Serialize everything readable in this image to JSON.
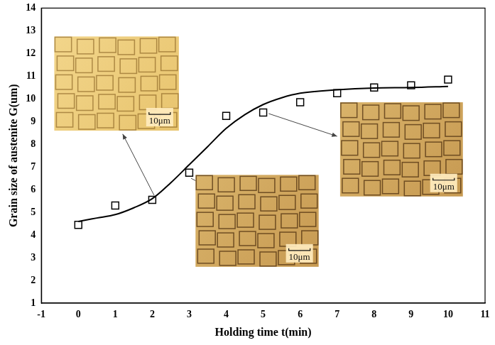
{
  "chart_data": {
    "type": "scatter",
    "x_label": "Holding time t(min)",
    "y_label": "Grain size of austenite G(um)",
    "xlim": [
      -1,
      11
    ],
    "xticks": [
      -1,
      0,
      1,
      2,
      3,
      4,
      5,
      6,
      7,
      8,
      9,
      10,
      11
    ],
    "ylim": [
      1,
      14
    ],
    "yticks": [
      1,
      2,
      3,
      4,
      5,
      6,
      7,
      8,
      9,
      10,
      11,
      12,
      13,
      14
    ],
    "grid": false,
    "series": [
      {
        "type": "scatter",
        "marker": "square",
        "color": "#000000",
        "x": [
          0,
          1,
          2,
          3,
          4,
          5,
          6,
          7,
          8,
          9,
          10
        ],
        "values": [
          4.45,
          5.3,
          5.55,
          6.75,
          9.25,
          9.4,
          9.85,
          10.25,
          10.5,
          10.6,
          10.85
        ]
      },
      {
        "type": "line",
        "marker": "none",
        "line_style": "solid",
        "color": "#000000",
        "x": [
          0,
          0.5,
          1,
          1.5,
          2,
          2.5,
          3,
          3.5,
          4,
          4.5,
          5,
          5.5,
          6,
          7,
          8,
          9,
          10
        ],
        "values": [
          4.6,
          4.75,
          4.9,
          5.2,
          5.6,
          6.3,
          7.1,
          7.9,
          8.7,
          9.3,
          9.75,
          10.05,
          10.25,
          10.4,
          10.48,
          10.5,
          10.55
        ]
      }
    ],
    "annotations": [
      "10μm",
      "10μm",
      "10μm"
    ]
  }
}
